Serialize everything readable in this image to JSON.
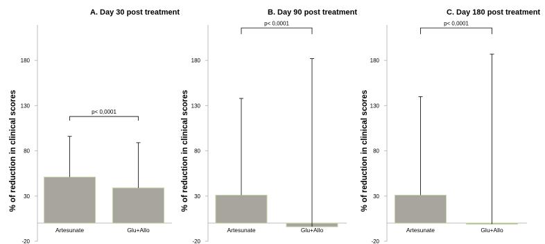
{
  "chart_data": [
    {
      "type": "bar",
      "title": "A. Day 30 post treatment",
      "ylabel": "% of reduction in clinical scores",
      "ylim": [
        -20,
        230
      ],
      "yticks": [
        "-20",
        "30",
        "80",
        "130",
        "180"
      ],
      "categories": [
        "Artesunate",
        "Glu+Allo"
      ],
      "values": [
        51,
        39
      ],
      "error_upper": [
        96,
        89
      ],
      "annotation": "p< 0,0001",
      "bar_color": "#a8a49e",
      "bar_edge": "#c5d8a4"
    },
    {
      "type": "bar",
      "title": "B. Day 90 post treatment",
      "ylabel": "% of reduction in clinical scores",
      "ylim": [
        -20,
        230
      ],
      "yticks": [
        "-20",
        "30",
        "80",
        "130",
        "180"
      ],
      "categories": [
        "Artesunate",
        "Glu+Allo"
      ],
      "values": [
        31,
        -4
      ],
      "error_upper": [
        138,
        182
      ],
      "annotation": "p< 0,0001",
      "bar_color": "#a8a49e",
      "bar_edge": "#c5d8a4"
    },
    {
      "type": "bar",
      "title": "C. Day 180 post treatment",
      "ylabel": "% of reduction in clinical scores",
      "ylim": [
        -20,
        230
      ],
      "yticks": [
        "-20",
        "30",
        "80",
        "130",
        "180"
      ],
      "categories": [
        "Artesunate",
        "Glu+Allo"
      ],
      "values": [
        31,
        -1
      ],
      "error_upper": [
        140,
        187
      ],
      "annotation": "p< 0,0001",
      "bar_color": "#a8a49e",
      "bar_edge": "#c5d8a4"
    }
  ]
}
